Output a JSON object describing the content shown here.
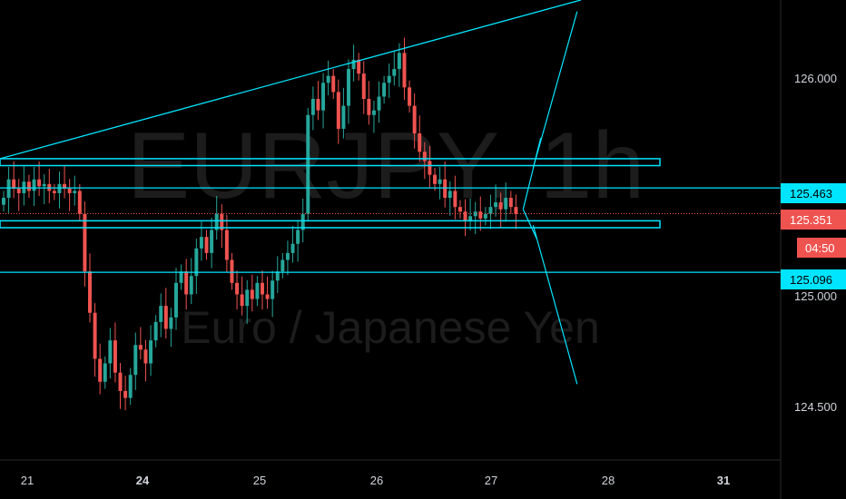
{
  "watermark": {
    "symbol": "EURJPY, 1h",
    "description": "Euro / Japanese Yen"
  },
  "colors": {
    "background": "#000000",
    "up": "#26a69a",
    "down": "#ef5350",
    "drawing": "#00e5ff",
    "price_line": "#ef5350",
    "axis_text": "#d1d4dc",
    "axis_line": "#2a2a2a",
    "tag_cyan": "#00e5ff",
    "tag_red": "#ef5350"
  },
  "chart_data": {
    "type": "candlestick",
    "symbol": "EURJPY",
    "timeframe": "1h",
    "y_axis": {
      "range": [
        124.28,
        126.28
      ],
      "ticks": [
        "126.000",
        "125.000",
        "124.500"
      ]
    },
    "x_axis": {
      "ticks": [
        {
          "label": "21",
          "bold": false
        },
        {
          "label": "24",
          "bold": true
        },
        {
          "label": "25",
          "bold": false
        },
        {
          "label": "26",
          "bold": false
        },
        {
          "label": "27",
          "bold": false
        },
        {
          "label": "28",
          "bold": false
        },
        {
          "label": "31",
          "bold": true
        }
      ]
    },
    "price_tags": [
      {
        "value": 125.463,
        "label": "125.463",
        "style": "cyan"
      },
      {
        "value": 125.351,
        "label": "125.351",
        "style": "red"
      },
      {
        "label": "04:50",
        "style": "red",
        "kind": "countdown"
      },
      {
        "value": 125.096,
        "label": "125.096",
        "style": "cyan"
      }
    ],
    "horizontal_lines": [
      125.463,
      125.096
    ],
    "zones": [
      {
        "from": 125.56,
        "to": 125.59
      },
      {
        "from": 125.29,
        "to": 125.32
      }
    ],
    "current_price": 125.351,
    "trendline": {
      "from": [
        0.0,
        125.59
      ],
      "to": [
        23.1,
        126.28
      ]
    },
    "projection": [
      [
        20.8,
        125.37
      ],
      [
        21.5,
        125.68
      ],
      [
        21.2,
        125.55
      ],
      [
        22.95,
        126.23
      ]
    ],
    "projection_alt": [
      [
        20.8,
        125.37
      ],
      [
        21.35,
        125.24
      ],
      [
        21.2,
        125.3
      ],
      [
        22.95,
        124.61
      ]
    ],
    "candle_index_per_day": 4.5,
    "closes": [
      125.42,
      125.5,
      125.46,
      125.44,
      125.49,
      125.45,
      125.5,
      125.47,
      125.48,
      125.45,
      125.44,
      125.48,
      125.46,
      125.44,
      125.45,
      125.35,
      125.1,
      124.92,
      124.72,
      124.62,
      124.7,
      124.8,
      124.66,
      124.58,
      124.55,
      124.65,
      124.78,
      124.76,
      124.7,
      124.8,
      124.88,
      124.95,
      124.85,
      124.9,
      125.05,
      125.1,
      125.0,
      125.08,
      125.2,
      125.25,
      125.18,
      125.28,
      125.35,
      125.28,
      125.15,
      125.05,
      125.0,
      124.95,
      125.02,
      124.98,
      125.05,
      125.0,
      124.98,
      125.06,
      125.1,
      125.15,
      125.18,
      125.22,
      125.28,
      125.35,
      125.78,
      125.85,
      125.8,
      125.92,
      125.95,
      125.88,
      125.72,
      125.82,
      125.98,
      126.02,
      125.96,
      125.85,
      125.78,
      125.8,
      125.86,
      125.92,
      125.95,
      125.98,
      126.05,
      125.9,
      125.82,
      125.7,
      125.62,
      125.58,
      125.52,
      125.48,
      125.5,
      125.42,
      125.45,
      125.38,
      125.36,
      125.32,
      125.34,
      125.36,
      125.33,
      125.35,
      125.38,
      125.4,
      125.37,
      125.42,
      125.38,
      125.35
    ]
  }
}
